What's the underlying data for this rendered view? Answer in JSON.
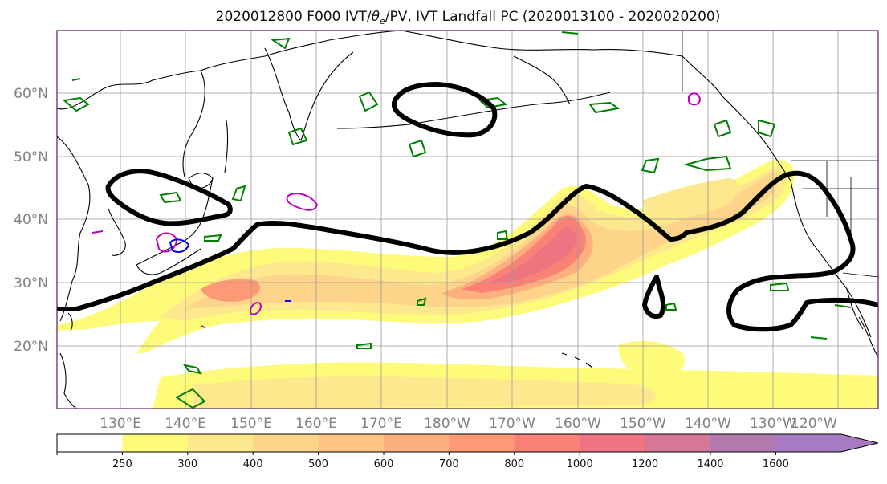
{
  "title": {
    "main": "2020012800 F000 IVT/",
    "theta": "θ",
    "theta_sub": "e",
    "rest": "/PV, IVT Landfall PC (2020013100 - 2020020200)"
  },
  "map": {
    "lat_labels": [
      "60°N",
      "50°N",
      "40°N",
      "30°N",
      "20°N"
    ],
    "lon_labels": [
      "130°E",
      "140°E",
      "150°E",
      "160°E",
      "170°E",
      "180°W",
      "170°W",
      "160°W",
      "150°W",
      "140°W",
      "130°W",
      "120°W"
    ],
    "colors": {
      "land_line": "#000000",
      "theta_e_contour": "#008000",
      "pv_contour": "#c000c0",
      "pv_contour_blue": "#0000ff",
      "landfall_contour": "#000000",
      "grid": "#999999"
    }
  },
  "colorbar": {
    "ticks": [
      "250",
      "300",
      "400",
      "500",
      "600",
      "700",
      "800",
      "1000",
      "1200",
      "1400",
      "1600"
    ],
    "colors": [
      "#ffffff",
      "#fefb7a",
      "#fde88d",
      "#fdd48a",
      "#fdc585",
      "#fdb07d",
      "#fd9a76",
      "#f98176",
      "#ee7482",
      "#d47896",
      "#b37aad",
      "#a67bc1"
    ]
  }
}
